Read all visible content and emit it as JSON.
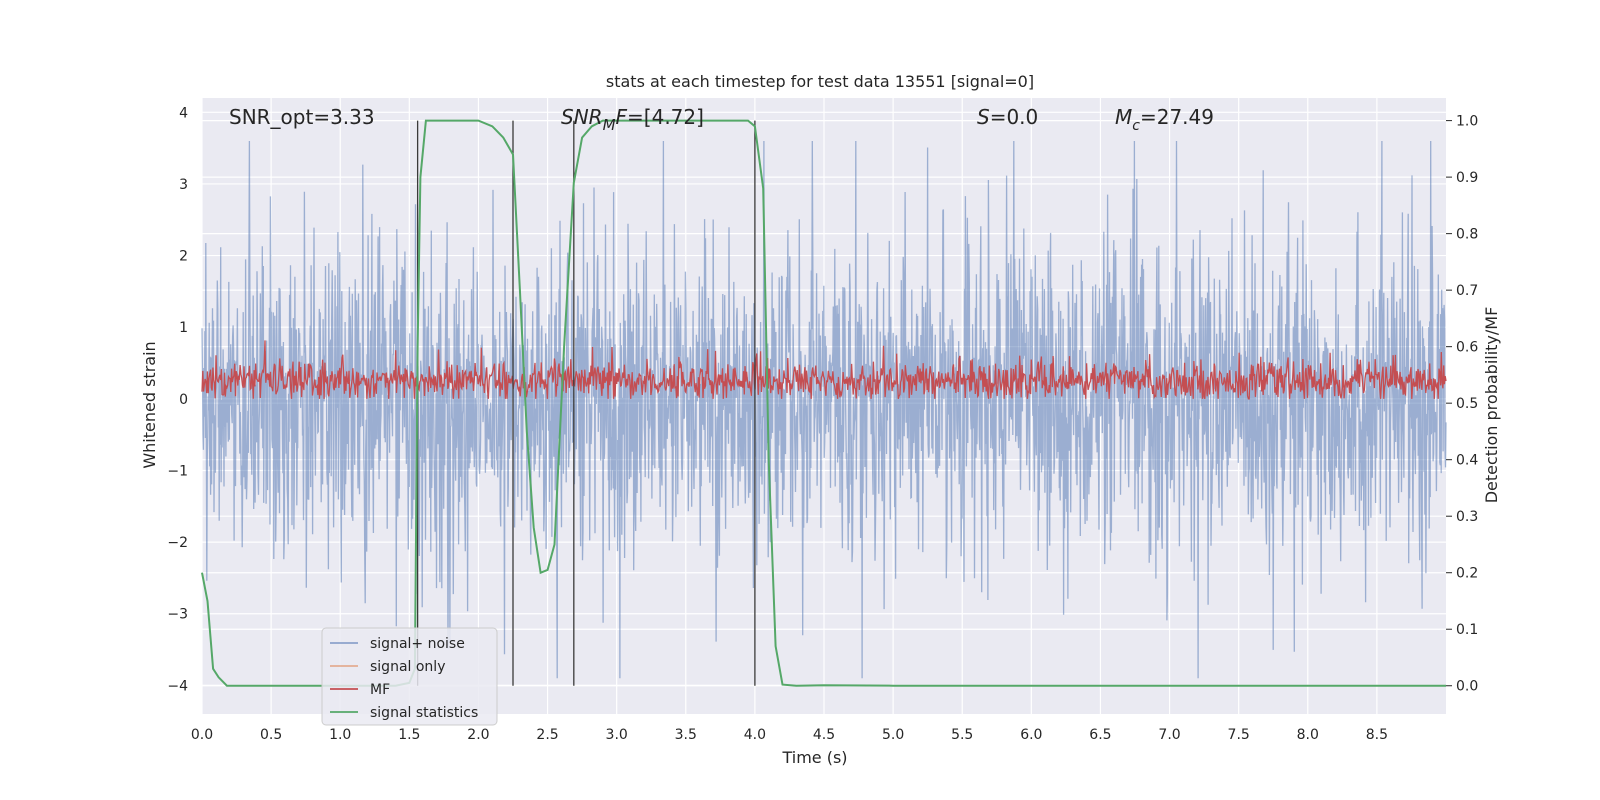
{
  "chart_data": {
    "type": "line",
    "title": "stats at each timestep for test data 13551 [signal=0]",
    "xlabel": "Time (s)",
    "ylabel_left": "Whitened strain",
    "ylabel_right": "Detection probability/MF",
    "xlim": [
      0.0,
      9.0
    ],
    "ylim_left": [
      -4.4,
      4.2
    ],
    "ylim_right": [
      -0.05,
      1.04
    ],
    "x_ticks": [
      "0.0",
      "0.5",
      "1.0",
      "1.5",
      "2.0",
      "2.5",
      "3.0",
      "3.5",
      "4.0",
      "4.5",
      "5.0",
      "5.5",
      "6.0",
      "6.5",
      "7.0",
      "7.5",
      "8.0",
      "8.5"
    ],
    "y_ticks_left": [
      "4",
      "3",
      "2",
      "1",
      "0",
      "−1",
      "−2",
      "−3",
      "−4"
    ],
    "y_ticks_right": [
      "1.0",
      "0.9",
      "0.8",
      "0.7",
      "0.6",
      "0.5",
      "0.4",
      "0.3",
      "0.2",
      "0.1",
      "0.0"
    ],
    "grid": true,
    "legend_placement": "lower-left",
    "annotations": {
      "snr_opt": "SNR_opt=3.33",
      "snr_mf": "SNR_MF=[4.72]",
      "s": "S=0.0",
      "mc": "M_c=27.49"
    },
    "vertical_markers": [
      1.56,
      2.25,
      2.69,
      4.0
    ],
    "series": [
      {
        "name": "signal+ noise",
        "color": "#4c72b0",
        "axis": "left",
        "description_level": {
          "mean": 0.0,
          "typical_band": [
            -2.4,
            2.4
          ],
          "peak_range": [
            -3.9,
            3.6
          ]
        }
      },
      {
        "name": "signal only",
        "color": "#dd8452",
        "axis": "left",
        "values": []
      },
      {
        "name": "MF",
        "color": "#c44e52",
        "axis": "left",
        "description_level": {
          "mean": 0.25,
          "band": [
            0.0,
            0.6
          ]
        }
      },
      {
        "name": "signal statistics",
        "color": "#55a868",
        "axis": "right",
        "x": [
          0.0,
          0.04,
          0.08,
          0.12,
          0.18,
          0.3,
          1.4,
          1.5,
          1.54,
          1.56,
          1.58,
          1.62,
          2.0,
          2.1,
          2.18,
          2.25,
          2.3,
          2.35,
          2.4,
          2.45,
          2.5,
          2.55,
          2.62,
          2.69,
          2.75,
          2.82,
          2.9,
          3.0,
          3.5,
          3.95,
          4.0,
          4.06,
          4.1,
          4.15,
          4.2,
          4.3,
          4.5,
          5.0,
          9.0
        ],
        "y": [
          0.2,
          0.15,
          0.03,
          0.015,
          0.0,
          0.0,
          0.0,
          0.005,
          0.03,
          0.6,
          0.9,
          1.0,
          1.0,
          0.99,
          0.97,
          0.94,
          0.7,
          0.45,
          0.28,
          0.2,
          0.205,
          0.25,
          0.6,
          0.89,
          0.97,
          0.99,
          1.0,
          1.0,
          1.0,
          1.0,
          0.99,
          0.88,
          0.4,
          0.07,
          0.002,
          0.0,
          0.001,
          0.0,
          0.0
        ]
      }
    ]
  }
}
